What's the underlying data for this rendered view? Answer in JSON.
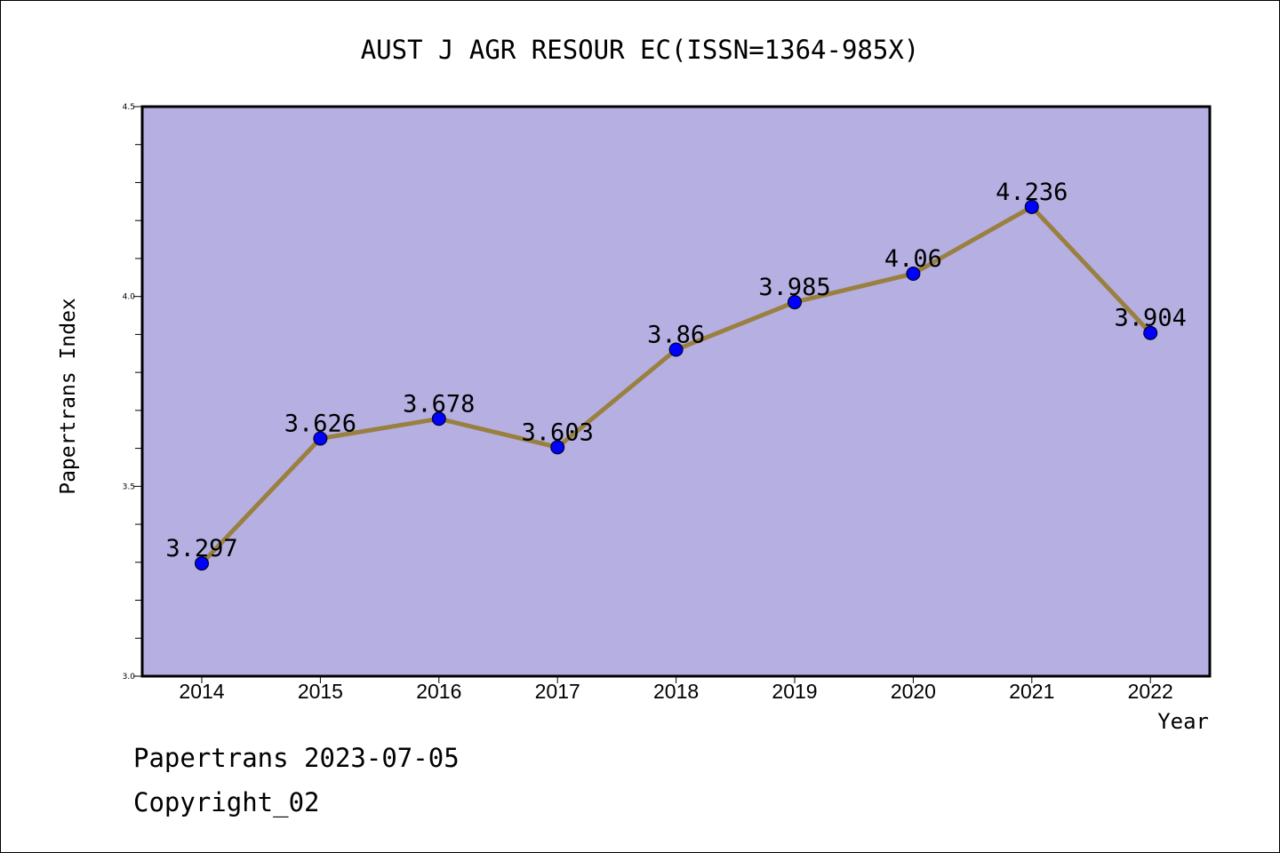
{
  "chart_data": {
    "type": "line",
    "title": "AUST J AGR RESOUR EC(ISSN=1364-985X)",
    "xlabel": "Year",
    "ylabel": "Papertrans Index",
    "categories": [
      "2014",
      "2015",
      "2016",
      "2017",
      "2018",
      "2019",
      "2020",
      "2021",
      "2022"
    ],
    "values": [
      3.297,
      3.626,
      3.678,
      3.603,
      3.86,
      3.985,
      4.06,
      4.236,
      3.904
    ],
    "value_labels": [
      "3.297",
      "3.626",
      "3.678",
      "3.603",
      "3.86",
      "3.985",
      "4.06",
      "4.236",
      "3.904"
    ],
    "ylim": [
      3.0,
      4.5
    ],
    "yticks": [
      "3.0",
      "3.5",
      "4.0",
      "4.5"
    ],
    "y_minor_step": 0.1,
    "grid": false,
    "colors": {
      "plot_background": "#b5afe2",
      "line": "#9a8040",
      "marker": "#0000ff"
    }
  },
  "footer": {
    "line1": "Papertrans 2023-07-05",
    "line2": "Copyright_02"
  }
}
